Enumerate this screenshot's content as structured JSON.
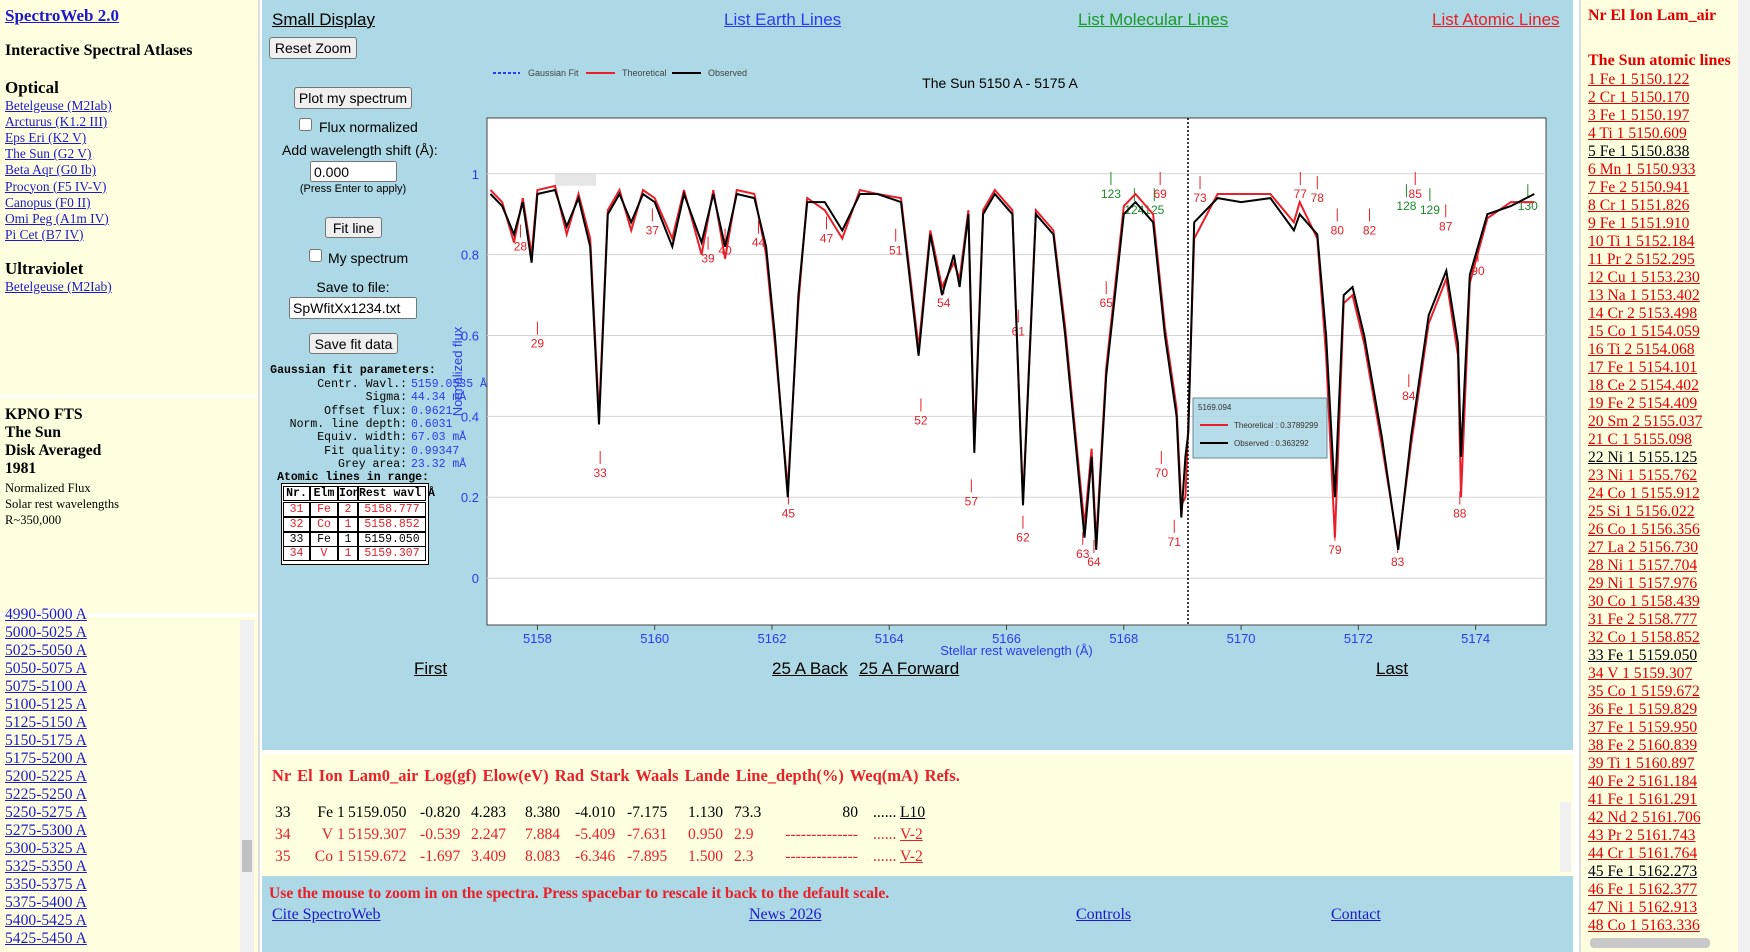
{
  "left": {
    "title": "SpectroWeb 2.0",
    "subtitle": "Interactive Spectral Atlases",
    "optical_heading": "Optical",
    "optical": [
      "Betelgeuse (M2Iab)",
      "Arcturus (K1.2 III)",
      "Eps Eri (K2 V)",
      "The Sun (G2 V)",
      "Beta Aqr (G0 Ib)",
      "Procyon (F5 IV-V)",
      "Canopus (F0 II)",
      "Omi Peg (A1m IV)",
      "Pi Cet (B7 IV)"
    ],
    "uv_heading": "Ultraviolet",
    "uv": [
      "Betelgeuse (M2Iab)"
    ],
    "info_bold": [
      "KPNO FTS",
      "The Sun",
      "Disk Averaged",
      "1981"
    ],
    "info": [
      "Normalized Flux",
      "Solar rest wavelengths",
      "R~350,000"
    ],
    "ranges": [
      "4990-5000 A",
      "5000-5025 A",
      "5025-5050 A",
      "5050-5075 A",
      "5075-5100 A",
      "5100-5125 A",
      "5125-5150 A",
      "5150-5175 A",
      "5175-5200 A",
      "5200-5225 A",
      "5225-5250 A",
      "5250-5275 A",
      "5275-5300 A",
      "5300-5325 A",
      "5325-5350 A",
      "5350-5375 A",
      "5375-5400 A",
      "5400-5425 A",
      "5425-5450 A"
    ]
  },
  "nav": {
    "small": "Small Display",
    "earth": "List Earth Lines",
    "molecular": "List Molecular Lines",
    "atomic": "List Atomic Lines"
  },
  "controls": {
    "reset": "Reset Zoom",
    "plot": "Plot my spectrum",
    "flux": "Flux normalized",
    "shift_label": "Add wavelength shift (Å):",
    "shift": "0.000",
    "enter": "(Press Enter to apply)",
    "fit": "Fit line",
    "my": "My spectrum",
    "save_label": "Save to file:",
    "file": "SpWfitXx1234.txt",
    "save": "Save fit data",
    "gauss_title": "Gaussian fit parameters:",
    "gauss": [
      {
        "label": "Centr. Wavl.:",
        "value": "5159.0535 Å"
      },
      {
        "label": "Sigma:",
        "value": "44.34 mÅ"
      },
      {
        "label": "Offset flux:",
        "value": "0.9621"
      },
      {
        "label": "Norm. line depth:",
        "value": "0.6031"
      },
      {
        "label": "Equiv. width:",
        "value": "67.03 mÅ"
      },
      {
        "label": "Fit quality:",
        "value": "0.99347"
      },
      {
        "label": "Grey area:",
        "value": "23.32 mÅ"
      }
    ],
    "lines_title": "Atomic lines in range:",
    "table_header": [
      "Nr.",
      "Elm",
      "Ion",
      "Rest wavl Å"
    ],
    "table": [
      {
        "color": "#e8202a",
        "cells": [
          "31",
          "Fe",
          "2",
          "5158.777"
        ]
      },
      {
        "color": "#e8202a",
        "cells": [
          "32",
          "Co",
          "1",
          "5158.852"
        ]
      },
      {
        "color": "#000000",
        "cells": [
          "33",
          "Fe",
          "1",
          "5159.050"
        ]
      },
      {
        "color": "#e8202a",
        "cells": [
          "34",
          "V",
          "1",
          "5159.307"
        ]
      }
    ]
  },
  "chart_data": {
    "type": "line",
    "title": "The Sun 5150 A - 5175 A",
    "xlabel": "Stellar rest wavelength (Å)",
    "ylabel": "Normalized flux",
    "fit_legend": {
      "name": "Gaussian Fit",
      "color": "#2a3cf0"
    },
    "x": [
      5157.2,
      5157.4,
      5157.6,
      5157.75,
      5157.9,
      5158.0,
      5158.3,
      5158.5,
      5158.7,
      5158.9,
      5159.05,
      5159.2,
      5159.4,
      5159.6,
      5159.8,
      5160.0,
      5160.3,
      5160.5,
      5160.8,
      5161.0,
      5161.2,
      5161.4,
      5161.7,
      5161.9,
      5162.05,
      5162.27,
      5162.45,
      5162.6,
      5162.9,
      5163.2,
      5163.5,
      5163.8,
      5164.2,
      5164.5,
      5164.7,
      5164.9,
      5165.1,
      5165.2,
      5165.35,
      5165.45,
      5165.6,
      5165.8,
      5166.1,
      5166.28,
      5166.5,
      5166.8,
      5167.0,
      5167.2,
      5167.33,
      5167.45,
      5167.53,
      5167.7,
      5168.0,
      5168.2,
      5168.5,
      5168.7,
      5168.9,
      5168.98,
      5169.05,
      5169.1,
      5169.2,
      5169.6,
      5170.0,
      5170.5,
      5170.9,
      5171.0,
      5171.3,
      5171.45,
      5171.6,
      5171.75,
      5171.9,
      5172.1,
      5172.4,
      5172.68,
      5172.9,
      5173.2,
      5173.5,
      5173.7,
      5173.75,
      5173.9,
      5174.2,
      5174.6,
      5175.0
    ],
    "series": [
      {
        "name": "Theoretical",
        "color": "#e8202a",
        "values": [
          0.96,
          0.93,
          0.83,
          0.94,
          0.8,
          0.96,
          0.97,
          0.85,
          0.95,
          0.84,
          0.4,
          0.91,
          0.96,
          0.86,
          0.96,
          0.94,
          0.84,
          0.96,
          0.8,
          0.96,
          0.79,
          0.96,
          0.95,
          0.8,
          0.58,
          0.22,
          0.68,
          0.94,
          0.91,
          0.84,
          0.96,
          0.95,
          0.94,
          0.57,
          0.86,
          0.72,
          0.78,
          0.74,
          0.91,
          0.33,
          0.91,
          0.96,
          0.91,
          0.19,
          0.91,
          0.86,
          0.62,
          0.32,
          0.13,
          0.32,
          0.09,
          0.52,
          0.92,
          0.95,
          0.9,
          0.62,
          0.42,
          0.18,
          0.2,
          0.38,
          0.84,
          0.95,
          0.95,
          0.95,
          0.88,
          0.93,
          0.84,
          0.55,
          0.1,
          0.68,
          0.7,
          0.58,
          0.33,
          0.08,
          0.33,
          0.63,
          0.74,
          0.55,
          0.2,
          0.73,
          0.89,
          0.93,
          0.93
        ]
      },
      {
        "name": "Observed",
        "color": "#000000",
        "values": [
          0.95,
          0.92,
          0.85,
          0.93,
          0.78,
          0.95,
          0.96,
          0.87,
          0.94,
          0.82,
          0.38,
          0.9,
          0.95,
          0.88,
          0.95,
          0.93,
          0.82,
          0.95,
          0.83,
          0.95,
          0.82,
          0.95,
          0.94,
          0.82,
          0.6,
          0.2,
          0.7,
          0.93,
          0.93,
          0.86,
          0.95,
          0.95,
          0.93,
          0.55,
          0.85,
          0.7,
          0.8,
          0.72,
          0.9,
          0.31,
          0.9,
          0.95,
          0.9,
          0.18,
          0.9,
          0.85,
          0.6,
          0.3,
          0.1,
          0.3,
          0.07,
          0.5,
          0.9,
          0.93,
          0.88,
          0.6,
          0.4,
          0.15,
          0.3,
          0.36,
          0.88,
          0.94,
          0.93,
          0.94,
          0.86,
          0.9,
          0.85,
          0.6,
          0.2,
          0.7,
          0.72,
          0.6,
          0.35,
          0.07,
          0.35,
          0.65,
          0.76,
          0.58,
          0.3,
          0.75,
          0.9,
          0.92,
          0.95
        ]
      }
    ],
    "xlim": [
      5157.14,
      5175.2
    ],
    "ylim": [
      -0.116,
      1.138
    ],
    "xticks": [
      5158,
      5160,
      5162,
      5164,
      5166,
      5168,
      5170,
      5172,
      5174
    ],
    "yticks": [
      0,
      0.2,
      0.4,
      0.6,
      0.8,
      1
    ],
    "grid": true,
    "cursor": {
      "x": 5169.094,
      "rows": [
        "Theoretical : 0.3789299",
        "Observed : 0.363292"
      ]
    },
    "markers": [
      {
        "color": "#e8202a",
        "items": [
          {
            "label": "28",
            "x": 5157.71,
            "y": 0.81
          },
          {
            "label": "29",
            "x": 5158.0,
            "y": 0.57
          },
          {
            "label": "33",
            "x": 5159.07,
            "y": 0.25
          },
          {
            "label": "37",
            "x": 5159.96,
            "y": 0.85
          },
          {
            "label": "39",
            "x": 5160.91,
            "y": 0.78
          },
          {
            "label": "40",
            "x": 5161.2,
            "y": 0.8
          },
          {
            "label": "44",
            "x": 5161.77,
            "y": 0.82
          },
          {
            "label": "45",
            "x": 5162.28,
            "y": 0.15
          },
          {
            "label": "47",
            "x": 5162.93,
            "y": 0.83
          },
          {
            "label": "51",
            "x": 5164.11,
            "y": 0.8
          },
          {
            "label": "52",
            "x": 5164.54,
            "y": 0.38
          },
          {
            "label": "54",
            "x": 5164.93,
            "y": 0.67
          },
          {
            "label": "57",
            "x": 5165.4,
            "y": 0.18
          },
          {
            "label": "61",
            "x": 5166.2,
            "y": 0.6
          },
          {
            "label": "62",
            "x": 5166.28,
            "y": 0.09
          },
          {
            "label": "63",
            "x": 5167.3,
            "y": 0.05
          },
          {
            "label": "64",
            "x": 5167.49,
            "y": 0.03
          },
          {
            "label": "65",
            "x": 5167.7,
            "y": 0.67
          },
          {
            "label": "69",
            "x": 5168.62,
            "y": 0.94
          },
          {
            "label": "70",
            "x": 5168.64,
            "y": 0.25
          },
          {
            "label": "71",
            "x": 5168.86,
            "y": 0.08
          },
          {
            "label": "73",
            "x": 5169.3,
            "y": 0.93
          },
          {
            "label": "77",
            "x": 5171.01,
            "y": 0.94
          },
          {
            "label": "78",
            "x": 5171.3,
            "y": 0.93
          },
          {
            "label": "79",
            "x": 5171.6,
            "y": 0.06
          },
          {
            "label": "80",
            "x": 5171.64,
            "y": 0.85
          },
          {
            "label": "82",
            "x": 5172.19,
            "y": 0.85
          },
          {
            "label": "83",
            "x": 5172.67,
            "y": 0.03
          },
          {
            "label": "84",
            "x": 5172.86,
            "y": 0.44
          },
          {
            "label": "85",
            "x": 5172.97,
            "y": 0.94
          },
          {
            "label": "87",
            "x": 5173.49,
            "y": 0.86
          },
          {
            "label": "88",
            "x": 5173.73,
            "y": 0.15
          },
          {
            "label": "90",
            "x": 5174.04,
            "y": 0.75
          }
        ]
      },
      {
        "color": "#1a8a2a",
        "items": [
          {
            "label": "123",
            "x": 5167.78,
            "y": 0.94
          },
          {
            "label": "124",
            "x": 5168.18,
            "y": 0.9
          },
          {
            "label": "125",
            "x": 5168.52,
            "y": 0.9
          },
          {
            "label": "128",
            "x": 5172.82,
            "y": 0.91
          },
          {
            "label": "129",
            "x": 5173.22,
            "y": 0.9
          },
          {
            "label": "130",
            "x": 5174.89,
            "y": 0.91
          }
        ]
      }
    ]
  },
  "pager": {
    "first": "First",
    "back": "25 A Back",
    "forward": "25 A Forward",
    "last": "Last"
  },
  "bottom": {
    "header": "Nr El Ion Lam0_air Log(gf) Elow(eV) Rad Stark Waals Lande Line_depth(%) Weq(mA) Refs.",
    "rows": [
      {
        "color": "#000000",
        "cells": [
          "33",
          "Fe",
          "1",
          "5159.050",
          "-0.820",
          "4.283",
          "8.380",
          "-4.010",
          "-7.175",
          "1.130",
          "73.3",
          "80",
          "......",
          "L10"
        ]
      },
      {
        "color": "#e8202a",
        "cells": [
          "34",
          "V",
          "1",
          "5159.307",
          "-0.539",
          "2.247",
          "7.884",
          "-5.409",
          "-7.631",
          "0.950",
          "2.9",
          "--------------",
          "......",
          "V-2"
        ]
      },
      {
        "color": "#e8202a",
        "cells": [
          "35",
          "Co",
          "1",
          "5159.672",
          "-1.697",
          "3.409",
          "8.083",
          "-6.346",
          "-7.895",
          "1.500",
          "2.3",
          "--------------",
          "......",
          "V-2"
        ]
      }
    ],
    "message": "Use the mouse to zoom in on the spectra. Press spacebar to rescale it back to the default scale.",
    "links": [
      "Cite SpectroWeb",
      "News 2026",
      "Controls",
      "Contact"
    ]
  },
  "right": {
    "header": "Nr El Ion Lam_air",
    "title": "The Sun atomic lines",
    "lines": [
      {
        "text": "1 Fe 1 5150.122",
        "color": "#e00000"
      },
      {
        "text": "2 Cr 1 5150.170",
        "color": "#e00000"
      },
      {
        "text": "3 Fe 1 5150.197",
        "color": "#e00000"
      },
      {
        "text": "4 Ti 1 5150.609",
        "color": "#e00000"
      },
      {
        "text": "5 Fe 1 5150.838",
        "color": "#000000"
      },
      {
        "text": "6 Mn 1 5150.933",
        "color": "#e00000"
      },
      {
        "text": "7 Fe 2 5150.941",
        "color": "#e00000"
      },
      {
        "text": "8 Cr 1 5151.826",
        "color": "#e00000"
      },
      {
        "text": "9 Fe 1 5151.910",
        "color": "#e00000"
      },
      {
        "text": "10 Ti 1 5152.184",
        "color": "#e00000"
      },
      {
        "text": "11 Pr 2 5152.295",
        "color": "#e00000"
      },
      {
        "text": "12 Cu 1 5153.230",
        "color": "#e00000"
      },
      {
        "text": "13 Na 1 5153.402",
        "color": "#e00000"
      },
      {
        "text": "14 Cr 2 5153.498",
        "color": "#e00000"
      },
      {
        "text": "15 Co 1 5154.059",
        "color": "#e00000"
      },
      {
        "text": "16 Ti 2 5154.068",
        "color": "#e00000"
      },
      {
        "text": "17 Fe 1 5154.101",
        "color": "#e00000"
      },
      {
        "text": "18 Ce 2 5154.402",
        "color": "#e00000"
      },
      {
        "text": "19 Fe 2 5154.409",
        "color": "#e00000"
      },
      {
        "text": "20 Sm 2 5155.037",
        "color": "#e00000"
      },
      {
        "text": "21 C 1 5155.098",
        "color": "#e00000"
      },
      {
        "text": "22 Ni 1 5155.125",
        "color": "#000000"
      },
      {
        "text": "23 Ni 1 5155.762",
        "color": "#e00000"
      },
      {
        "text": "24 Co 1 5155.912",
        "color": "#e00000"
      },
      {
        "text": "25 Si 1 5156.022",
        "color": "#e00000"
      },
      {
        "text": "26 Co 1 5156.356",
        "color": "#e00000"
      },
      {
        "text": "27 La 2 5156.730",
        "color": "#e00000"
      },
      {
        "text": "28 Ni 1 5157.704",
        "color": "#e00000"
      },
      {
        "text": "29 Ni 1 5157.976",
        "color": "#e00000"
      },
      {
        "text": "30 Co 1 5158.439",
        "color": "#e00000"
      },
      {
        "text": "31 Fe 2 5158.777",
        "color": "#e00000"
      },
      {
        "text": "32 Co 1 5158.852",
        "color": "#e00000"
      },
      {
        "text": "33 Fe 1 5159.050",
        "color": "#000000"
      },
      {
        "text": "34 V 1 5159.307",
        "color": "#e00000"
      },
      {
        "text": "35 Co 1 5159.672",
        "color": "#e00000"
      },
      {
        "text": "36 Fe 1 5159.829",
        "color": "#e00000"
      },
      {
        "text": "37 Fe 1 5159.950",
        "color": "#e00000"
      },
      {
        "text": "38 Fe 2 5160.839",
        "color": "#e00000"
      },
      {
        "text": "39 Ti 1 5160.897",
        "color": "#e00000"
      },
      {
        "text": "40 Fe 2 5161.184",
        "color": "#e00000"
      },
      {
        "text": "41 Fe 1 5161.291",
        "color": "#e00000"
      },
      {
        "text": "42 Nd 2 5161.706",
        "color": "#e00000"
      },
      {
        "text": "43 Pr 2 5161.743",
        "color": "#e00000"
      },
      {
        "text": "44 Cr 1 5161.764",
        "color": "#e00000"
      },
      {
        "text": "45 Fe 1 5162.273",
        "color": "#000000"
      },
      {
        "text": "46 Fe 1 5162.377",
        "color": "#e00000"
      },
      {
        "text": "47 Ni 1 5162.913",
        "color": "#e00000"
      },
      {
        "text": "48 Co 1 5163.336",
        "color": "#e00000"
      }
    ]
  }
}
